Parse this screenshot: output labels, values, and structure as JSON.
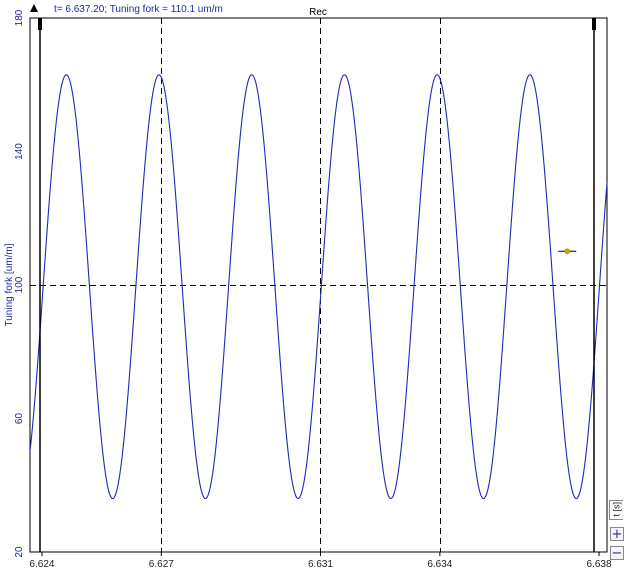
{
  "readout": "t= 6.637.20; Tuning fork = 110.1 um/m",
  "chart_data": {
    "type": "line",
    "title": "Rec",
    "xlabel": "",
    "ylabel": "Tuning fork [um/m]",
    "x_unit_label": "t [s]",
    "xlim": [
      6.6237,
      6.6382
    ],
    "ylim": [
      20,
      180
    ],
    "x_ticks": [
      "6.624",
      "6.627",
      "6.631",
      "6.634",
      "6.638"
    ],
    "y_ticks": [
      "180",
      "140",
      "100",
      "60",
      "20"
    ],
    "x_tick_values": [
      6.624,
      6.627,
      6.631,
      6.634,
      6.638
    ],
    "y_tick_values": [
      180,
      140,
      100,
      60,
      20
    ],
    "series": [
      {
        "color": "#1f2ab5",
        "signal": {
          "offset": 99.5,
          "amplitude": 63.5,
          "period": 0.00233,
          "phase_time": 6.62403
        }
      }
    ],
    "cursor": {
      "t": 6.6372,
      "value": 110.1
    },
    "grid": "dashed",
    "colors": {
      "axis_text": "#1f2a9e",
      "trace": "#1f2ab5",
      "cursor": "#c8a800"
    }
  },
  "controls": {
    "zoom_in_icon": "plus-icon",
    "zoom_out_icon": "minus-icon"
  }
}
